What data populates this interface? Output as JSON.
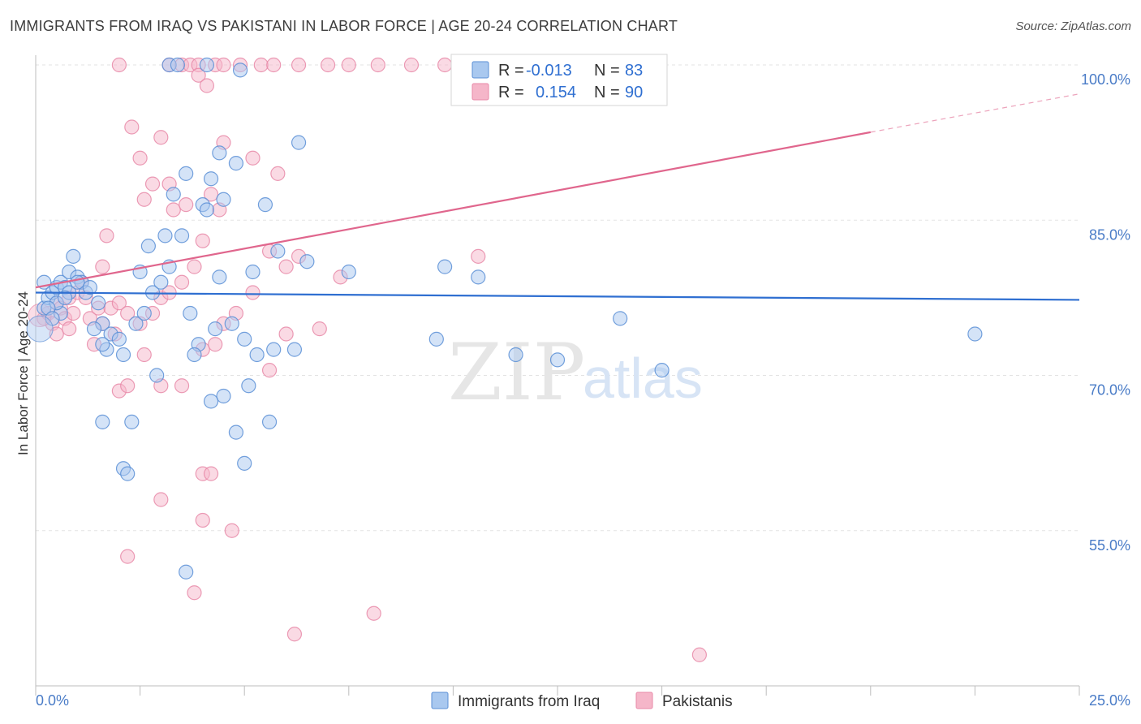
{
  "header": {
    "title": "IMMIGRANTS FROM IRAQ VS PAKISTANI IN LABOR FORCE | AGE 20-24 CORRELATION CHART",
    "source": "Source: ZipAtlas.com"
  },
  "watermark": {
    "zip": "ZIP",
    "atlas": "atlas"
  },
  "colors": {
    "blue_fill": "#a9c8ef",
    "blue_stroke": "#5b8fd6",
    "blue_line": "#2f6fd1",
    "pink_fill": "#f5b6c9",
    "pink_stroke": "#e889a8",
    "pink_line": "#e0668d",
    "grid": "#e3e3e3"
  },
  "legend": {
    "r_label": "R =",
    "n_label": "N =",
    "series": [
      {
        "name": "Immigrants from Iraq",
        "r": "-0.013",
        "n": "83"
      },
      {
        "name": "Pakistanis",
        "r": "0.154",
        "n": "90"
      }
    ]
  },
  "chart_data": {
    "type": "scatter",
    "title": "IMMIGRANTS FROM IRAQ VS PAKISTANI IN LABOR FORCE | AGE 20-24 CORRELATION CHART",
    "xlabel": "",
    "ylabel": "In Labor Force | Age 20-24",
    "xlim": [
      0,
      25
    ],
    "ylim": [
      40,
      100
    ],
    "x_tick_labels": [
      "0.0%",
      "25.0%"
    ],
    "y_ticks": [
      55,
      70,
      85,
      100
    ],
    "y_tick_labels": [
      "55.0%",
      "70.0%",
      "85.0%",
      "100.0%"
    ],
    "grid": true,
    "series": [
      {
        "name": "Immigrants from Iraq",
        "r": -0.013,
        "n": 83,
        "trend": {
          "x0": 0,
          "y0": 78.0,
          "x1": 25,
          "y1": 77.3
        },
        "points": [
          [
            0.2,
            76.5
          ],
          [
            0.3,
            77.5
          ],
          [
            0.2,
            79.0
          ],
          [
            0.4,
            78.0
          ],
          [
            0.5,
            78.5
          ],
          [
            0.6,
            79.0
          ],
          [
            0.7,
            78.5
          ],
          [
            0.8,
            80.0
          ],
          [
            0.9,
            81.5
          ],
          [
            1.0,
            79.5
          ],
          [
            1.1,
            79.0
          ],
          [
            1.2,
            78.0
          ],
          [
            0.6,
            76.0
          ],
          [
            0.8,
            78.0
          ],
          [
            0.5,
            77.0
          ],
          [
            0.3,
            76.5
          ],
          [
            0.4,
            75.5
          ],
          [
            0.7,
            77.5
          ],
          [
            1.0,
            79.0
          ],
          [
            1.3,
            78.5
          ],
          [
            1.5,
            77.0
          ],
          [
            1.6,
            75.0
          ],
          [
            1.8,
            74.0
          ],
          [
            1.7,
            72.5
          ],
          [
            2.0,
            73.5
          ],
          [
            1.4,
            74.5
          ],
          [
            1.6,
            73.0
          ],
          [
            2.1,
            72.0
          ],
          [
            2.4,
            75.0
          ],
          [
            2.6,
            76.0
          ],
          [
            2.8,
            78.0
          ],
          [
            3.0,
            79.0
          ],
          [
            3.2,
            80.5
          ],
          [
            2.5,
            80.0
          ],
          [
            2.7,
            82.5
          ],
          [
            3.1,
            83.5
          ],
          [
            3.5,
            83.5
          ],
          [
            3.6,
            89.5
          ],
          [
            3.3,
            87.5
          ],
          [
            4.0,
            86.5
          ],
          [
            4.1,
            86.0
          ],
          [
            4.5,
            87.0
          ],
          [
            4.2,
            89.0
          ],
          [
            4.4,
            91.5
          ],
          [
            4.8,
            90.5
          ],
          [
            5.5,
            86.5
          ],
          [
            6.3,
            92.5
          ],
          [
            3.2,
            100.0
          ],
          [
            3.4,
            100.0
          ],
          [
            4.1,
            100.0
          ],
          [
            4.9,
            99.5
          ],
          [
            3.7,
            76.0
          ],
          [
            3.9,
            73.0
          ],
          [
            4.3,
            74.5
          ],
          [
            4.7,
            75.0
          ],
          [
            5.0,
            73.5
          ],
          [
            5.3,
            72.0
          ],
          [
            5.7,
            72.5
          ],
          [
            6.2,
            72.5
          ],
          [
            3.8,
            72.0
          ],
          [
            2.9,
            70.0
          ],
          [
            4.5,
            68.0
          ],
          [
            5.1,
            69.0
          ],
          [
            4.2,
            67.5
          ],
          [
            5.6,
            65.5
          ],
          [
            4.8,
            64.5
          ],
          [
            2.3,
            65.5
          ],
          [
            1.6,
            65.5
          ],
          [
            2.1,
            61.0
          ],
          [
            2.2,
            60.5
          ],
          [
            5.0,
            61.5
          ],
          [
            3.6,
            51.0
          ],
          [
            5.2,
            80.0
          ],
          [
            4.4,
            79.5
          ],
          [
            5.8,
            82.0
          ],
          [
            6.5,
            81.0
          ],
          [
            7.5,
            80.0
          ],
          [
            9.8,
            80.5
          ],
          [
            10.6,
            79.5
          ],
          [
            9.6,
            73.5
          ],
          [
            11.5,
            72.0
          ],
          [
            12.5,
            71.5
          ],
          [
            14.0,
            75.5
          ],
          [
            15.0,
            70.5
          ],
          [
            22.5,
            74.0
          ]
        ]
      },
      {
        "name": "Pakistanis",
        "r": 0.154,
        "n": 90,
        "trend": {
          "x0": 0,
          "y0": 78.5,
          "x1": 20,
          "y1": 93.5,
          "dash_to_x": 25,
          "dash_to_y": 97.2
        },
        "points": [
          [
            0.2,
            75.5
          ],
          [
            0.3,
            76.0
          ],
          [
            0.4,
            75.0
          ],
          [
            0.5,
            77.0
          ],
          [
            0.6,
            76.5
          ],
          [
            0.7,
            75.5
          ],
          [
            0.8,
            77.5
          ],
          [
            0.9,
            76.0
          ],
          [
            1.0,
            78.0
          ],
          [
            1.1,
            79.0
          ],
          [
            1.2,
            77.5
          ],
          [
            0.5,
            74.0
          ],
          [
            0.8,
            74.5
          ],
          [
            1.3,
            75.5
          ],
          [
            1.5,
            76.5
          ],
          [
            1.6,
            75.0
          ],
          [
            1.8,
            76.5
          ],
          [
            2.0,
            77.0
          ],
          [
            2.2,
            76.0
          ],
          [
            1.4,
            73.0
          ],
          [
            1.9,
            74.0
          ],
          [
            2.5,
            75.0
          ],
          [
            2.8,
            76.0
          ],
          [
            3.0,
            77.5
          ],
          [
            3.2,
            78.0
          ],
          [
            2.6,
            72.0
          ],
          [
            3.0,
            69.0
          ],
          [
            2.0,
            68.5
          ],
          [
            2.2,
            69.0
          ],
          [
            4.0,
            72.5
          ],
          [
            4.3,
            73.0
          ],
          [
            4.5,
            75.0
          ],
          [
            4.8,
            76.0
          ],
          [
            5.2,
            78.0
          ],
          [
            5.6,
            82.0
          ],
          [
            6.0,
            80.5
          ],
          [
            6.3,
            81.5
          ],
          [
            3.5,
            79.0
          ],
          [
            3.8,
            80.5
          ],
          [
            4.0,
            83.0
          ],
          [
            1.6,
            80.5
          ],
          [
            1.7,
            83.5
          ],
          [
            2.6,
            87.0
          ],
          [
            2.8,
            88.5
          ],
          [
            3.2,
            88.5
          ],
          [
            3.3,
            86.0
          ],
          [
            3.6,
            86.5
          ],
          [
            4.2,
            87.5
          ],
          [
            4.4,
            86.0
          ],
          [
            4.5,
            92.5
          ],
          [
            3.0,
            93.0
          ],
          [
            2.3,
            94.0
          ],
          [
            2.5,
            91.0
          ],
          [
            5.2,
            91.0
          ],
          [
            5.8,
            89.5
          ],
          [
            2.0,
            100.0
          ],
          [
            3.2,
            100.0
          ],
          [
            3.5,
            100.0
          ],
          [
            3.7,
            100.0
          ],
          [
            3.9,
            100.0
          ],
          [
            4.3,
            100.0
          ],
          [
            4.5,
            100.0
          ],
          [
            4.9,
            100.0
          ],
          [
            5.4,
            100.0
          ],
          [
            5.7,
            100.0
          ],
          [
            6.3,
            100.0
          ],
          [
            7.0,
            100.0
          ],
          [
            7.5,
            100.0
          ],
          [
            8.2,
            100.0
          ],
          [
            9.0,
            100.0
          ],
          [
            9.8,
            100.0
          ],
          [
            10.5,
            100.0
          ],
          [
            12.8,
            100.0
          ],
          [
            3.9,
            99.0
          ],
          [
            4.1,
            98.0
          ],
          [
            6.0,
            74.0
          ],
          [
            7.3,
            79.5
          ],
          [
            6.8,
            74.5
          ],
          [
            10.6,
            81.5
          ],
          [
            3.5,
            69.0
          ],
          [
            5.6,
            70.5
          ],
          [
            4.0,
            60.5
          ],
          [
            4.2,
            60.5
          ],
          [
            3.0,
            58.0
          ],
          [
            4.0,
            56.0
          ],
          [
            4.7,
            55.0
          ],
          [
            2.2,
            52.5
          ],
          [
            3.8,
            49.0
          ],
          [
            6.2,
            45.0
          ],
          [
            8.1,
            47.0
          ],
          [
            15.9,
            43.0
          ]
        ]
      }
    ]
  }
}
